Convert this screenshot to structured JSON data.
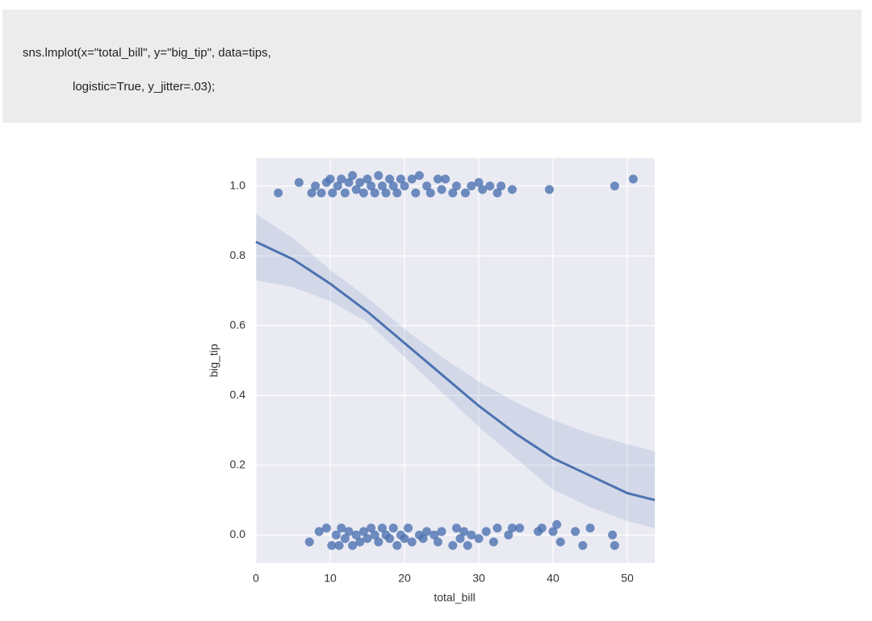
{
  "code": [
    "sns.lmplot(x=\"total_bill\", y=\"big_tip\", data=tips,",
    "logistic=True, y_jitter=.03);"
  ],
  "chart_data": {
    "type": "scatter",
    "xlabel": "total_bill",
    "ylabel": "big_tip",
    "color": "#4c72b0",
    "grid": true,
    "xlim": [
      0,
      53.7
    ],
    "ylim": [
      -0.08,
      1.08
    ],
    "xticks": [
      0,
      10,
      20,
      30,
      40,
      50
    ],
    "yticks": [
      {
        "value": 0,
        "label": "0.0"
      },
      0.2,
      0.4,
      0.6,
      0.8,
      {
        "value": 1,
        "label": "1.0"
      }
    ],
    "x": [
      3,
      5.8,
      7.5,
      8,
      8.8,
      9.5,
      10,
      10.3,
      11,
      11.5,
      12,
      12.5,
      13,
      13.5,
      14,
      14.5,
      15,
      15.5,
      16,
      16.5,
      17,
      17.5,
      18,
      18.5,
      19,
      19.5,
      20,
      21,
      21.5,
      22,
      23,
      23.5,
      24.5,
      25,
      25.5,
      26.5,
      27,
      28.2,
      29,
      30,
      30.5,
      31.5,
      32.5,
      33,
      34.5,
      39.5,
      48.3,
      50.8,
      7.2,
      8.5,
      9.5,
      10.2,
      10.8,
      11.2,
      11.5,
      12,
      12.5,
      13,
      13.5,
      14,
      14.5,
      15,
      15.5,
      16,
      16.5,
      17,
      17.5,
      18,
      18.5,
      19,
      19.5,
      20,
      20.5,
      21,
      22,
      22.5,
      23,
      24,
      24.5,
      25,
      26.5,
      27,
      27.5,
      28,
      28.5,
      29,
      30,
      31,
      32,
      32.5,
      34,
      34.5,
      35.5,
      38,
      38.5,
      40,
      40.5,
      41,
      43,
      44,
      45,
      48,
      48.3
    ],
    "values": [
      0.98,
      1.01,
      0.98,
      1.0,
      0.98,
      1.01,
      1.02,
      0.98,
      1.0,
      1.02,
      0.98,
      1.01,
      1.03,
      0.99,
      1.01,
      0.98,
      1.02,
      1.0,
      0.98,
      1.03,
      1.0,
      0.98,
      1.02,
      1.0,
      0.98,
      1.02,
      1.0,
      1.02,
      0.98,
      1.03,
      1.0,
      0.98,
      1.02,
      0.99,
      1.02,
      0.98,
      1.0,
      0.98,
      1.0,
      1.01,
      0.99,
      1.0,
      0.98,
      1.0,
      0.99,
      0.99,
      1.0,
      1.02,
      -0.02,
      0.01,
      0.02,
      -0.03,
      0.0,
      -0.03,
      0.02,
      -0.01,
      0.01,
      -0.03,
      0.0,
      -0.02,
      0.01,
      -0.01,
      0.02,
      0.0,
      -0.02,
      0.02,
      0.0,
      -0.01,
      0.02,
      -0.03,
      0.0,
      -0.01,
      0.02,
      -0.02,
      0.0,
      -0.01,
      0.01,
      0.0,
      -0.02,
      0.01,
      -0.03,
      0.02,
      -0.01,
      0.01,
      -0.03,
      0.0,
      -0.01,
      0.01,
      -0.02,
      0.02,
      0.0,
      0.02,
      0.02,
      0.01,
      0.02,
      0.01,
      0.03,
      -0.02,
      0.01,
      -0.03,
      0.02,
      0.0,
      -0.03
    ],
    "fit": {
      "x": [
        0,
        5,
        10,
        15,
        20,
        25,
        30,
        35,
        40,
        45,
        50,
        53.7
      ],
      "values": [
        0.84,
        0.79,
        0.72,
        0.64,
        0.55,
        0.46,
        0.37,
        0.29,
        0.22,
        0.17,
        0.12,
        0.1
      ],
      "lower": [
        0.73,
        0.71,
        0.67,
        0.61,
        0.51,
        0.41,
        0.31,
        0.22,
        0.13,
        0.08,
        0.04,
        0.02
      ],
      "upper": [
        0.92,
        0.85,
        0.76,
        0.68,
        0.59,
        0.51,
        0.44,
        0.38,
        0.33,
        0.29,
        0.26,
        0.24
      ]
    }
  }
}
